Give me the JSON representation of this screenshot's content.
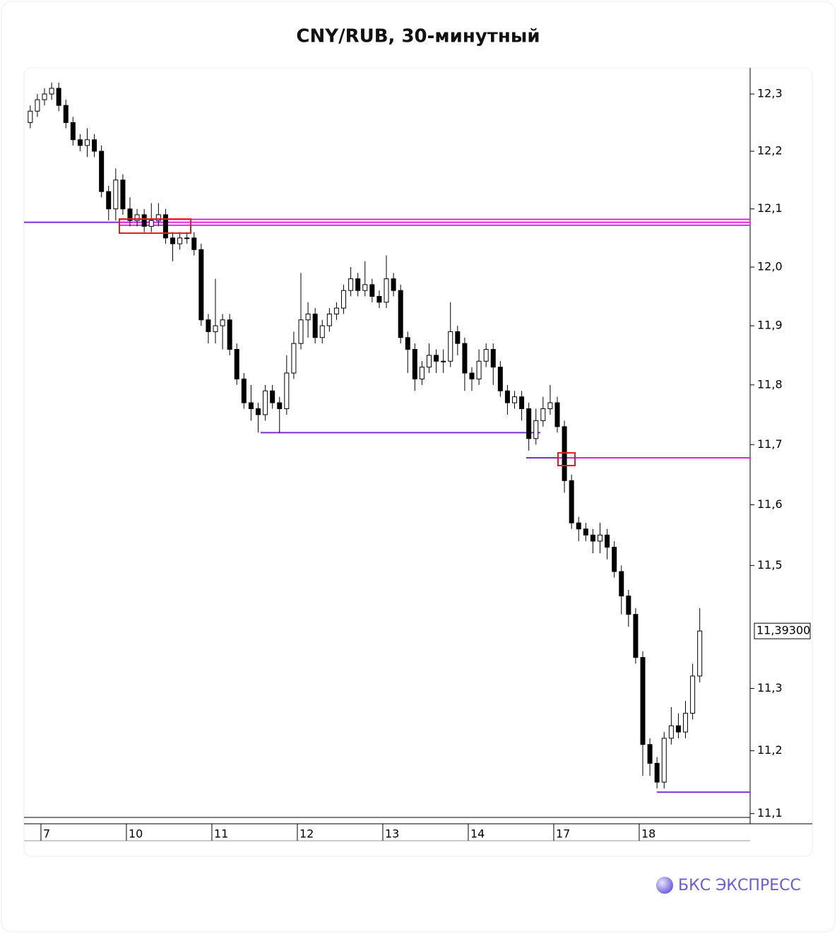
{
  "chart_data": {
    "type": "candlestick",
    "title": "CNY/RUB, 30-минутный",
    "brand": "БКС ЭКСПРЕСС",
    "log_scale": true,
    "categories": [
      null,
      null,
      "7",
      null,
      null,
      null,
      null,
      null,
      null,
      null,
      null,
      null,
      null,
      null,
      "10",
      null,
      null,
      null,
      null,
      null,
      null,
      null,
      null,
      null,
      null,
      null,
      "11",
      null,
      null,
      null,
      null,
      null,
      null,
      null,
      null,
      null,
      null,
      null,
      "12",
      null,
      null,
      null,
      null,
      null,
      null,
      null,
      null,
      null,
      null,
      null,
      "13",
      null,
      null,
      null,
      null,
      null,
      null,
      null,
      null,
      null,
      null,
      null,
      "14",
      null,
      null,
      null,
      null,
      null,
      null,
      null,
      null,
      null,
      null,
      null,
      "17",
      null,
      null,
      null,
      null,
      null,
      null,
      null,
      null,
      null,
      null,
      null,
      "18",
      null,
      null,
      null,
      null,
      null,
      null,
      null,
      null
    ],
    "open": [
      12.25,
      12.27,
      12.29,
      12.3,
      12.31,
      12.28,
      12.25,
      12.22,
      12.21,
      12.22,
      12.2,
      12.13,
      12.1,
      12.15,
      12.1,
      12.08,
      12.09,
      12.07,
      12.08,
      12.09,
      12.05,
      12.04,
      12.05,
      12.05,
      12.03,
      11.91,
      11.89,
      11.9,
      11.91,
      11.86,
      11.81,
      11.77,
      11.76,
      11.75,
      11.79,
      11.77,
      11.76,
      11.82,
      11.87,
      11.91,
      11.92,
      11.88,
      11.9,
      11.92,
      11.93,
      11.96,
      11.98,
      11.96,
      11.97,
      11.95,
      11.94,
      11.98,
      11.96,
      11.88,
      11.86,
      11.81,
      11.83,
      11.85,
      11.84,
      11.84,
      11.89,
      11.87,
      11.82,
      11.81,
      11.84,
      11.86,
      11.83,
      11.79,
      11.77,
      11.78,
      11.76,
      11.71,
      11.74,
      11.76,
      11.77,
      11.73,
      11.64,
      11.57,
      11.56,
      11.55,
      11.54,
      11.55,
      11.53,
      11.49,
      11.45,
      11.42,
      11.35,
      11.21,
      11.18,
      11.15,
      11.22,
      11.24,
      11.23,
      11.26,
      11.32
    ],
    "high": [
      12.28,
      12.3,
      12.31,
      12.32,
      12.32,
      12.29,
      12.26,
      12.23,
      12.24,
      12.23,
      12.21,
      12.14,
      12.17,
      12.16,
      12.12,
      12.1,
      12.1,
      12.11,
      12.11,
      12.1,
      12.06,
      12.06,
      12.06,
      12.06,
      12.04,
      11.92,
      11.98,
      11.92,
      11.92,
      11.87,
      11.82,
      11.8,
      11.77,
      11.8,
      11.8,
      11.78,
      11.85,
      11.89,
      11.99,
      11.94,
      11.93,
      11.91,
      11.93,
      11.94,
      11.97,
      12.0,
      11.99,
      12.01,
      11.98,
      11.96,
      12.02,
      11.99,
      11.97,
      11.89,
      11.87,
      11.84,
      11.87,
      11.86,
      11.86,
      11.94,
      11.9,
      11.88,
      11.83,
      11.86,
      11.87,
      11.87,
      11.84,
      11.8,
      11.79,
      11.79,
      11.77,
      11.76,
      11.78,
      11.8,
      11.78,
      11.74,
      11.65,
      11.58,
      11.57,
      11.56,
      11.57,
      11.56,
      11.54,
      11.5,
      11.46,
      11.43,
      11.36,
      11.22,
      11.19,
      11.23,
      11.27,
      11.26,
      11.28,
      11.34,
      11.43
    ],
    "low": [
      12.24,
      12.26,
      12.28,
      12.29,
      12.27,
      12.24,
      12.21,
      12.2,
      12.19,
      12.19,
      12.12,
      12.08,
      12.08,
      12.09,
      12.07,
      12.07,
      12.06,
      12.06,
      12.07,
      12.04,
      12.01,
      12.03,
      12.04,
      12.02,
      11.9,
      11.87,
      11.87,
      11.86,
      11.85,
      11.8,
      11.76,
      11.74,
      11.72,
      11.74,
      11.76,
      11.72,
      11.75,
      11.81,
      11.86,
      11.88,
      11.87,
      11.87,
      11.89,
      11.91,
      11.92,
      11.95,
      11.95,
      11.95,
      11.94,
      11.93,
      11.93,
      11.95,
      11.87,
      11.82,
      11.79,
      11.8,
      11.82,
      11.82,
      11.82,
      11.83,
      11.85,
      11.79,
      11.79,
      11.8,
      11.83,
      11.8,
      11.78,
      11.75,
      11.76,
      11.74,
      11.69,
      11.7,
      11.73,
      11.75,
      11.72,
      11.62,
      11.56,
      11.54,
      11.54,
      11.52,
      11.52,
      11.51,
      11.48,
      11.42,
      11.4,
      11.34,
      11.16,
      11.16,
      11.14,
      11.14,
      11.21,
      11.22,
      11.22,
      11.25,
      11.31
    ],
    "close": [
      12.27,
      12.29,
      12.3,
      12.31,
      12.28,
      12.25,
      12.22,
      12.21,
      12.22,
      12.2,
      12.13,
      12.1,
      12.15,
      12.1,
      12.08,
      12.09,
      12.07,
      12.08,
      12.09,
      12.05,
      12.04,
      12.05,
      12.05,
      12.03,
      11.91,
      11.89,
      11.9,
      11.91,
      11.86,
      11.81,
      11.77,
      11.76,
      11.75,
      11.79,
      11.77,
      11.76,
      11.82,
      11.87,
      11.91,
      11.92,
      11.88,
      11.9,
      11.92,
      11.93,
      11.96,
      11.98,
      11.96,
      11.97,
      11.95,
      11.94,
      11.98,
      11.96,
      11.88,
      11.86,
      11.81,
      11.83,
      11.85,
      11.84,
      11.84,
      11.89,
      11.87,
      11.82,
      11.81,
      11.84,
      11.86,
      11.83,
      11.79,
      11.77,
      11.78,
      11.76,
      11.71,
      11.74,
      11.76,
      11.77,
      11.73,
      11.64,
      11.57,
      11.56,
      11.55,
      11.54,
      11.55,
      11.53,
      11.49,
      11.45,
      11.42,
      11.35,
      11.21,
      11.18,
      11.15,
      11.22,
      11.24,
      11.23,
      11.26,
      11.32,
      11.393
    ],
    "up_color": "#ffffff",
    "down_color": "#000000",
    "ylim": [
      11.094,
      12.346
    ],
    "yticks": [
      {
        "value": 12.3,
        "label": "12,3"
      },
      {
        "value": 12.2,
        "label": "12,2"
      },
      {
        "value": 12.1,
        "label": "12,1"
      },
      {
        "value": 12.0,
        "label": "12,0"
      },
      {
        "value": 11.9,
        "label": "11,9"
      },
      {
        "value": 11.8,
        "label": "11,8"
      },
      {
        "value": 11.7,
        "label": "11,7"
      },
      {
        "value": 11.6,
        "label": "11,6"
      },
      {
        "value": 11.5,
        "label": "11,5"
      },
      {
        "value": 11.3,
        "label": "11,3"
      },
      {
        "value": 11.2,
        "label": "11,2"
      },
      {
        "value": 11.1,
        "label": "11,1"
      }
    ],
    "last_price": {
      "value": 11.393,
      "label": "11,39300"
    },
    "levels": [
      {
        "value": 12.077,
        "color": "#7b2fd0"
      },
      {
        "value": 12.082,
        "color": "#e020e0"
      },
      {
        "value": 12.077,
        "color": "#e020e0"
      },
      {
        "value": 12.072,
        "color": "#e020e0"
      },
      {
        "value": 11.72,
        "color": "#7b2fd0"
      },
      {
        "value": 11.678,
        "color": "#7b2fd0"
      },
      {
        "value": 11.678,
        "color": "#e020e0"
      },
      {
        "value": 11.134,
        "color": "#7b2fd0"
      }
    ]
  }
}
